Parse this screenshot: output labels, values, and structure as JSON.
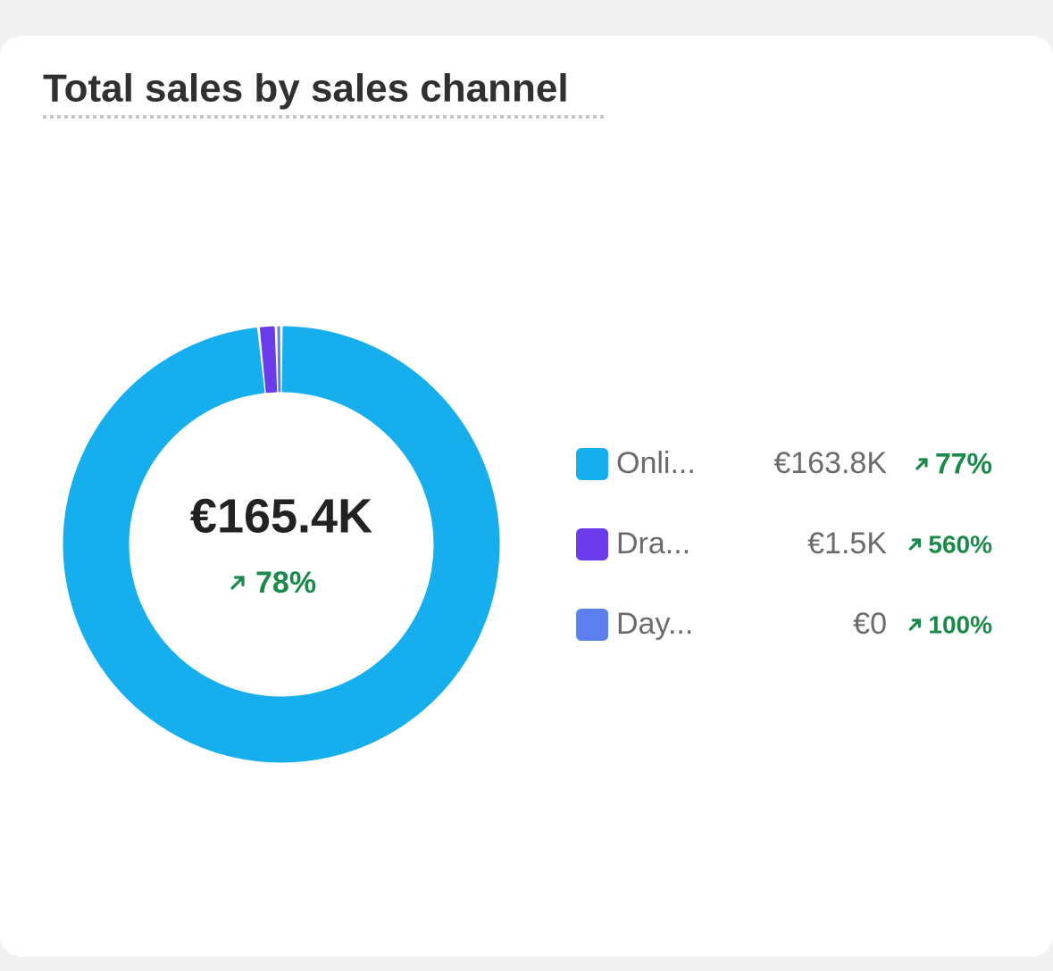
{
  "chart_data": {
    "type": "donut",
    "title": "Total sales by sales channel",
    "total": {
      "value": 165400,
      "label": "€165.4K"
    },
    "total_change": {
      "value": 78,
      "label": "78%"
    },
    "categories": [
      "Onli...",
      "Dra...",
      "Day..."
    ],
    "values": [
      163800,
      1500,
      0
    ],
    "value_labels": [
      "€163.8K",
      "€1.5K",
      "€0"
    ],
    "changes": [
      77,
      560,
      100
    ],
    "change_labels": [
      "77%",
      "560%",
      "100%"
    ],
    "colors": [
      "#16aeed",
      "#6a3cea",
      "#5b7fec"
    ]
  }
}
